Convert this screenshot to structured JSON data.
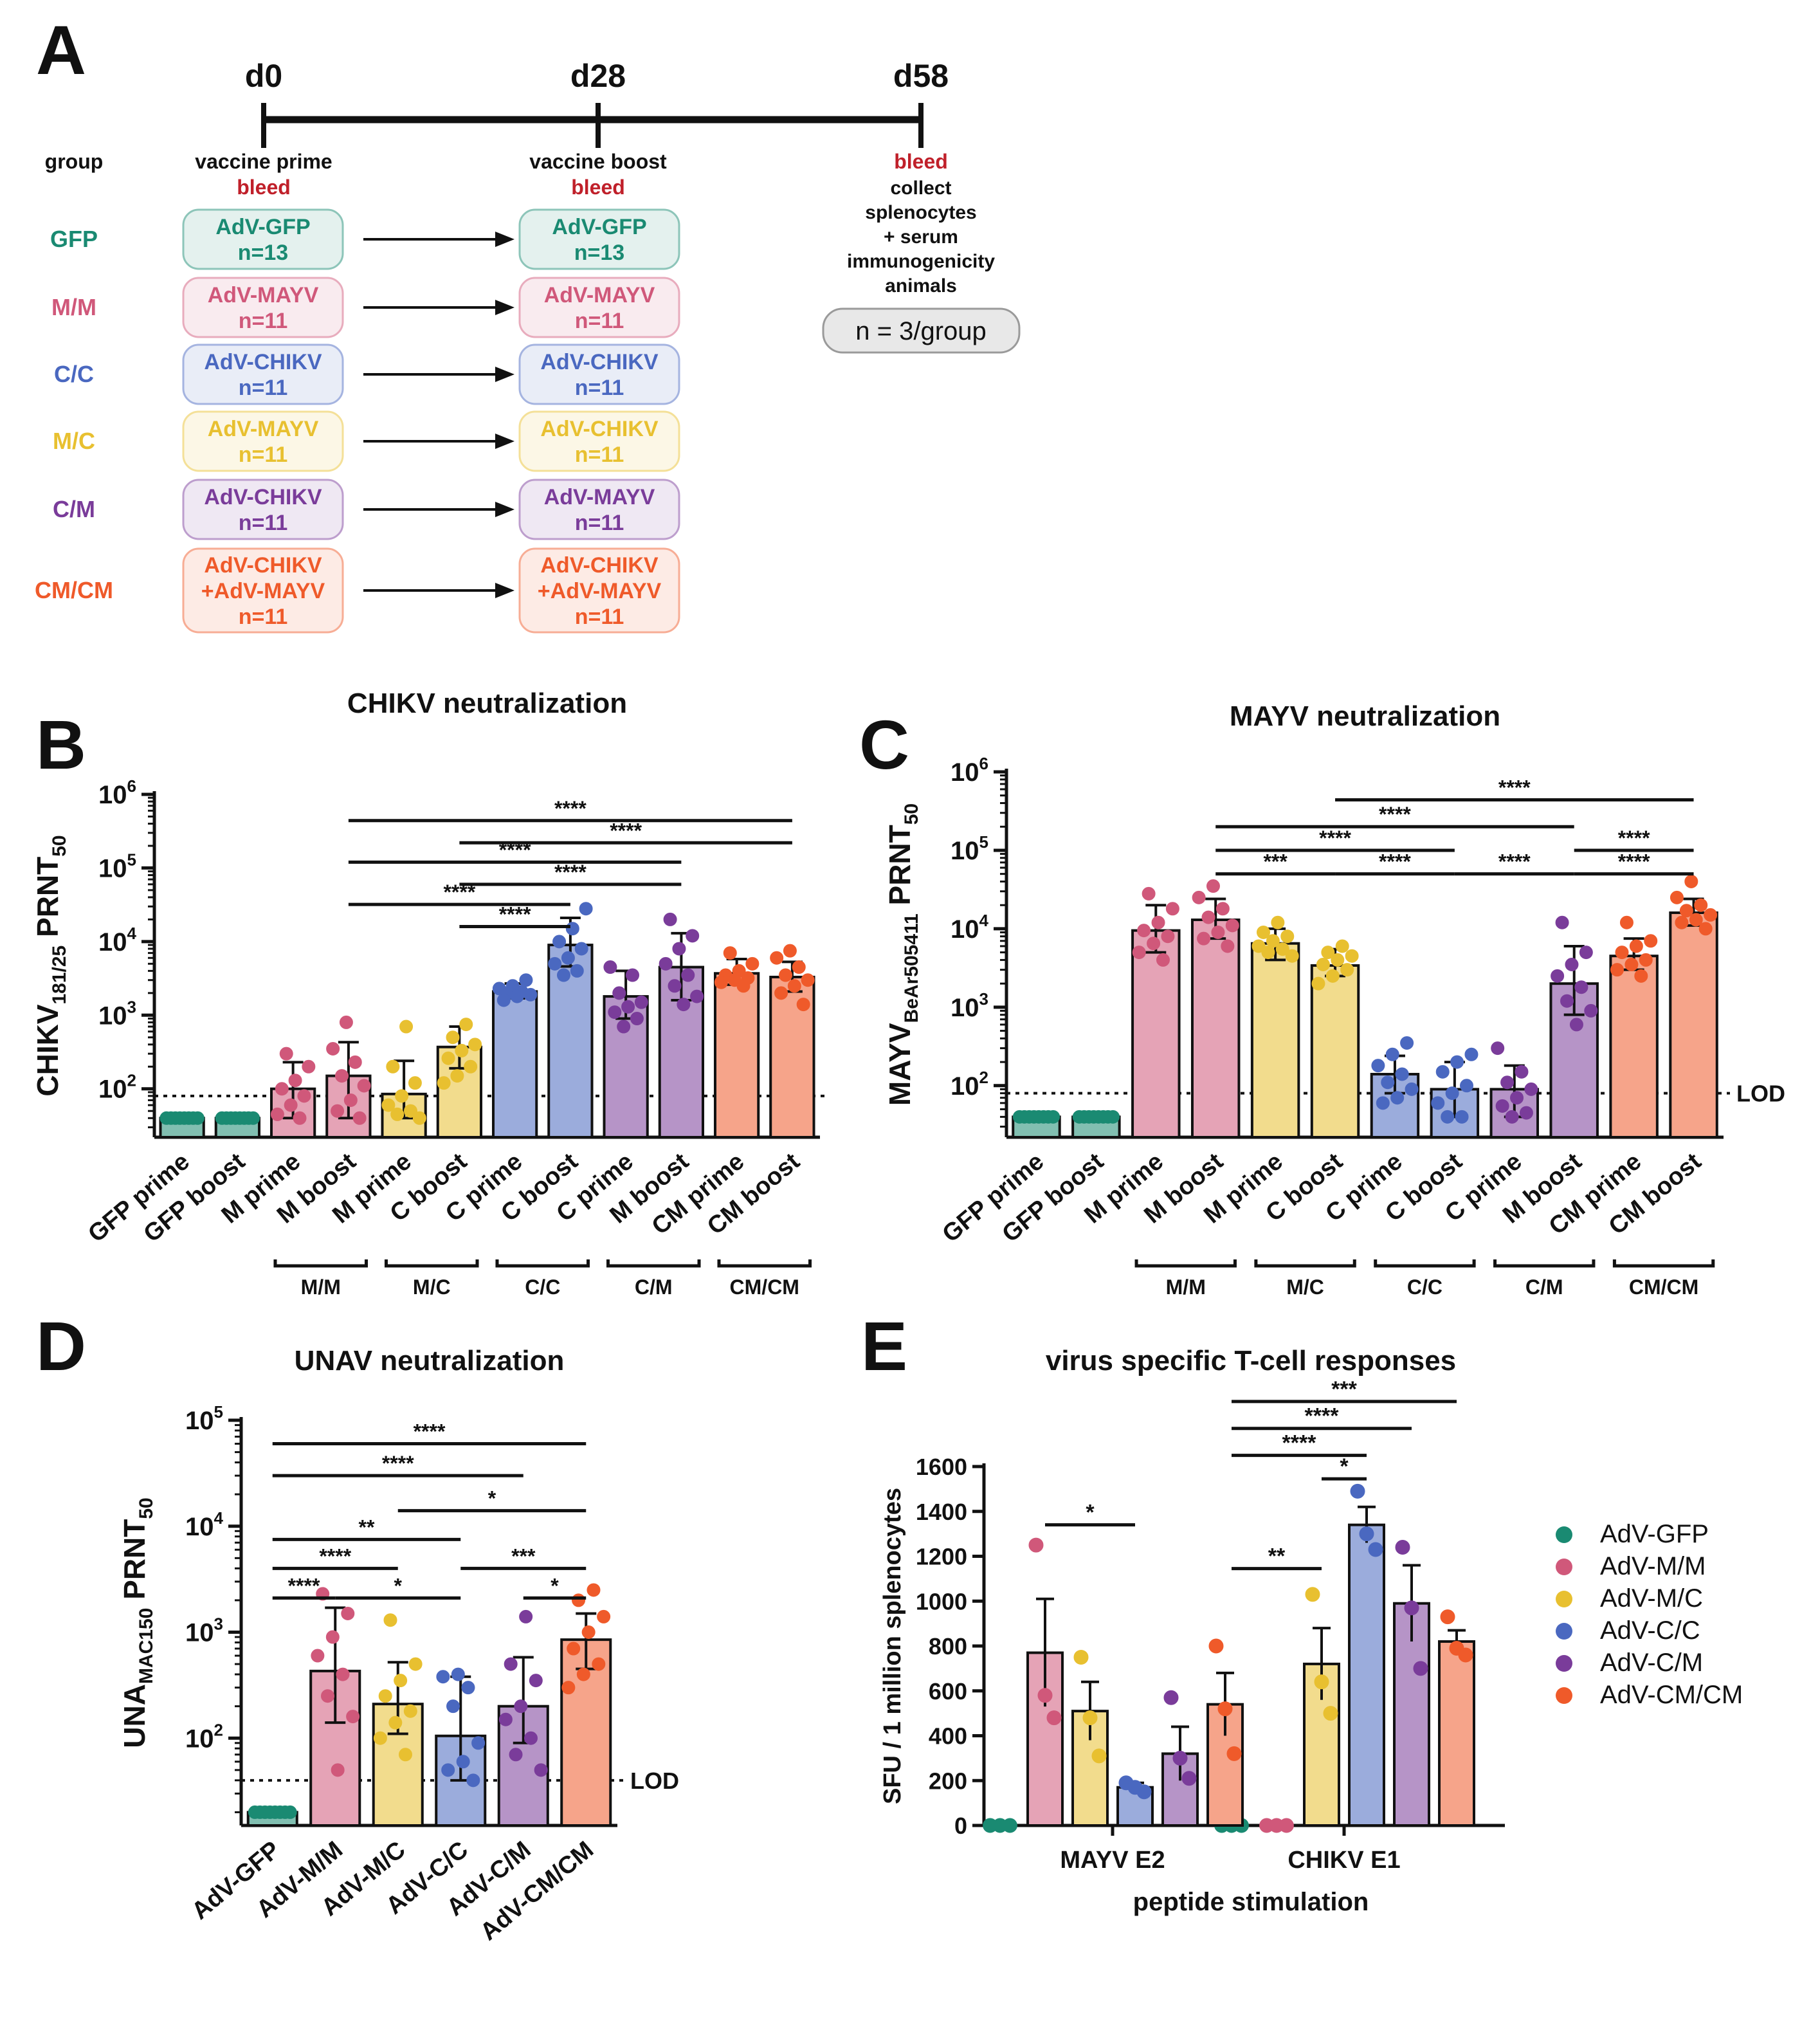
{
  "panel_letters": [
    "A",
    "B",
    "C",
    "D",
    "E"
  ],
  "colors": {
    "GFP": "#1a8a72",
    "MM": "#d0587a",
    "MC": "#e8c030",
    "CC": "#4a68c0",
    "CM": "#7a3c9a",
    "CMCM": "#ef5a2a",
    "bleed": "#c0202a"
  },
  "schema": {
    "timepoints": [
      "d0",
      "d28",
      "d58"
    ],
    "group_header": "group",
    "prime_label": "vaccine prime",
    "boost_label": "vaccine boost",
    "bleed_label": "bleed",
    "final_lines": [
      "collect",
      "splenocytes",
      "+ serum",
      "immunogenicity",
      "animals"
    ],
    "n_per_group": "n = 3/group",
    "groups": [
      {
        "name": "GFP",
        "key": "GFP",
        "prime": [
          "AdV-GFP",
          "n=13"
        ],
        "boost": [
          "AdV-GFP",
          "n=13"
        ]
      },
      {
        "name": "M/M",
        "key": "MM",
        "prime": [
          "AdV-MAYV",
          "n=11"
        ],
        "boost": [
          "AdV-MAYV",
          "n=11"
        ]
      },
      {
        "name": "C/C",
        "key": "CC",
        "prime": [
          "AdV-CHIKV",
          "n=11"
        ],
        "boost": [
          "AdV-CHIKV",
          "n=11"
        ]
      },
      {
        "name": "M/C",
        "key": "MC",
        "prime": [
          "AdV-MAYV",
          "n=11"
        ],
        "boost": [
          "AdV-CHIKV",
          "n=11"
        ]
      },
      {
        "name": "C/M",
        "key": "CM",
        "prime": [
          "AdV-CHIKV",
          "n=11"
        ],
        "boost": [
          "AdV-MAYV",
          "n=11"
        ]
      },
      {
        "name": "CM/CM",
        "key": "CMCM",
        "prime": [
          "AdV-CHIKV",
          "+AdV-MAYV",
          "n=11"
        ],
        "boost": [
          "AdV-CHIKV",
          "+AdV-MAYV",
          "n=11"
        ]
      }
    ]
  },
  "chart_data": [
    {
      "panel": "B",
      "type": "bar",
      "scale": "log",
      "title": "CHIKV neutralization",
      "ylabel_main": "CHIKV",
      "ylabel_sub": "181/25",
      "ylabel_tail": " PRNT",
      "ylabel_tail_sub": "50",
      "ylim": [
        22,
        1000000
      ],
      "ymax_exp": 6,
      "yticks": [
        {
          "base": "10",
          "exp": "2",
          "value": 100
        },
        {
          "base": "10",
          "exp": "3",
          "value": 1000
        },
        {
          "base": "10",
          "exp": "4",
          "value": 10000
        },
        {
          "base": "10",
          "exp": "5",
          "value": 100000
        },
        {
          "base": "10",
          "exp": "6",
          "value": 1000000
        }
      ],
      "lod": 80,
      "lod_label": "",
      "categories": [
        "GFP prime",
        "GFP boost",
        "M prime",
        "M boost",
        "M prime",
        "C boost",
        "C prime",
        "C boost",
        "C prime",
        "M boost",
        "CM prime",
        "CM boost"
      ],
      "color_keys": [
        "GFP",
        "GFP",
        "MM",
        "MM",
        "MC",
        "MC",
        "CC",
        "CC",
        "CM",
        "CM",
        "CMCM",
        "CMCM"
      ],
      "values": [
        40,
        40,
        100,
        150,
        85,
        370,
        2100,
        9000,
        1800,
        4500,
        3700,
        3300
      ],
      "err_hi": [
        40,
        40,
        230,
        430,
        240,
        700,
        2700,
        21000,
        4000,
        13000,
        5800,
        5300
      ],
      "err_lo": [
        40,
        40,
        40,
        40,
        40,
        190,
        1700,
        4600,
        900,
        1600,
        2600,
        2100
      ],
      "points": [
        [
          40,
          40,
          40,
          40,
          40,
          40,
          40,
          40
        ],
        [
          40,
          40,
          40,
          40,
          40,
          40,
          40,
          40
        ],
        [
          300,
          200,
          130,
          100,
          80,
          60,
          45,
          40
        ],
        [
          800,
          350,
          230,
          150,
          110,
          70,
          50,
          40
        ],
        [
          700,
          200,
          120,
          80,
          60,
          50,
          45,
          40
        ],
        [
          750,
          500,
          400,
          330,
          260,
          200,
          150,
          120
        ],
        [
          3000,
          2500,
          2300,
          2100,
          2000,
          1900,
          1800,
          1600
        ],
        [
          28000,
          15000,
          10000,
          8000,
          6000,
          5000,
          4000,
          3500
        ],
        [
          4500,
          3500,
          2000,
          1500,
          1300,
          1100,
          900,
          700
        ],
        [
          20000,
          12000,
          8000,
          5000,
          3500,
          2500,
          1800,
          1400
        ],
        [
          7000,
          5000,
          4000,
          3500,
          3200,
          3000,
          2800,
          2500
        ],
        [
          7500,
          6000,
          4500,
          3500,
          3000,
          2500,
          2000,
          1400
        ]
      ],
      "group_brackets": [
        {
          "label": "M/M",
          "from": 2,
          "to": 3
        },
        {
          "label": "M/C",
          "from": 4,
          "to": 5
        },
        {
          "label": "C/C",
          "from": 6,
          "to": 7
        },
        {
          "label": "C/M",
          "from": 8,
          "to": 9
        },
        {
          "label": "CM/CM",
          "from": 10,
          "to": 11
        }
      ],
      "significance": [
        {
          "from": 3,
          "to": 11,
          "label": "****",
          "y": 440000
        },
        {
          "from": 5,
          "to": 11,
          "label": "****",
          "y": 220000
        },
        {
          "from": 3,
          "to": 9,
          "label": "****",
          "y": 120000
        },
        {
          "from": 5,
          "to": 9,
          "label": "****",
          "y": 60000
        },
        {
          "from": 3,
          "to": 7,
          "label": "****",
          "y": 32000
        },
        {
          "from": 5,
          "to": 7,
          "label": "****",
          "y": 16000
        }
      ]
    },
    {
      "panel": "C",
      "type": "bar",
      "scale": "log",
      "title": "MAYV neutralization",
      "ylabel_main": "MAYV",
      "ylabel_sub": "BeAr505411",
      "ylabel_tail": " PRNT",
      "ylabel_tail_sub": "50",
      "ylim": [
        22,
        1000000
      ],
      "ymax_exp": 6,
      "yticks": [
        {
          "base": "10",
          "exp": "2",
          "value": 100
        },
        {
          "base": "10",
          "exp": "3",
          "value": 1000
        },
        {
          "base": "10",
          "exp": "4",
          "value": 10000
        },
        {
          "base": "10",
          "exp": "5",
          "value": 100000
        },
        {
          "base": "10",
          "exp": "6",
          "value": 1000000
        }
      ],
      "lod": 80,
      "lod_label": "LOD",
      "categories": [
        "GFP prime",
        "GFP boost",
        "M prime",
        "M boost",
        "M prime",
        "C boost",
        "C prime",
        "C boost",
        "C prime",
        "M boost",
        "CM prime",
        "CM boost"
      ],
      "color_keys": [
        "GFP",
        "GFP",
        "MM",
        "MM",
        "MC",
        "MC",
        "CC",
        "CC",
        "CM",
        "CM",
        "CMCM",
        "CMCM"
      ],
      "values": [
        40,
        40,
        9500,
        13000,
        6500,
        3400,
        140,
        90,
        90,
        2000,
        4500,
        16000
      ],
      "err_hi": [
        40,
        40,
        20000,
        24000,
        10000,
        5500,
        240,
        200,
        180,
        6000,
        7500,
        24000
      ],
      "err_lo": [
        40,
        40,
        5000,
        7500,
        4000,
        2500,
        80,
        40,
        40,
        800,
        3000,
        11000
      ],
      "points": [
        [
          40,
          40,
          40,
          40,
          40,
          40,
          40,
          40
        ],
        [
          40,
          40,
          40,
          40,
          40,
          40,
          40,
          40
        ],
        [
          28000,
          18000,
          12000,
          9500,
          8000,
          6500,
          5000,
          4000
        ],
        [
          35000,
          25000,
          18000,
          14000,
          11000,
          9000,
          7500,
          6000
        ],
        [
          12000,
          9000,
          8000,
          7000,
          6000,
          5500,
          5000,
          4500
        ],
        [
          6000,
          5000,
          4500,
          4000,
          3500,
          3000,
          2500,
          2000
        ],
        [
          350,
          250,
          180,
          140,
          110,
          90,
          70,
          60
        ],
        [
          250,
          200,
          150,
          100,
          80,
          60,
          40,
          40
        ],
        [
          300,
          150,
          110,
          90,
          70,
          55,
          45,
          40
        ],
        [
          12000,
          5000,
          3500,
          2500,
          1800,
          1200,
          900,
          600
        ],
        [
          12000,
          7000,
          6000,
          5000,
          4000,
          3500,
          3000,
          2500
        ],
        [
          40000,
          25000,
          20000,
          17000,
          15000,
          13000,
          12000,
          10000
        ]
      ],
      "group_brackets": [
        {
          "label": "M/M",
          "from": 2,
          "to": 3
        },
        {
          "label": "M/C",
          "from": 4,
          "to": 5
        },
        {
          "label": "C/C",
          "from": 6,
          "to": 7
        },
        {
          "label": "C/M",
          "from": 8,
          "to": 9
        },
        {
          "label": "CM/CM",
          "from": 10,
          "to": 11
        }
      ],
      "significance": [
        {
          "from": 5,
          "to": 11,
          "label": "****",
          "y": 440000
        },
        {
          "from": 3,
          "to": 9,
          "label": "****",
          "y": 200000
        },
        {
          "from": 3,
          "to": 7,
          "label": "****",
          "y": 100000
        },
        {
          "from": 9,
          "to": 11,
          "label": "****",
          "y": 100000
        },
        {
          "from": 3,
          "to": 5,
          "label": "***",
          "y": 50000
        },
        {
          "from": 5,
          "to": 7,
          "label": "****",
          "y": 50000
        },
        {
          "from": 7,
          "to": 9,
          "label": "****",
          "y": 50000
        },
        {
          "from": 9,
          "to": 11,
          "label": "****",
          "y": 50000
        }
      ]
    },
    {
      "panel": "D",
      "type": "bar",
      "scale": "log",
      "title": "UNAV neutralization",
      "ylabel_main": "UNA",
      "ylabel_sub": "MAC150",
      "ylabel_tail": " PRNT",
      "ylabel_tail_sub": "50",
      "ylim": [
        15,
        100000
      ],
      "ymax_exp": 5,
      "yticks": [
        {
          "base": "10",
          "exp": "2",
          "value": 100
        },
        {
          "base": "10",
          "exp": "3",
          "value": 1000
        },
        {
          "base": "10",
          "exp": "4",
          "value": 10000
        },
        {
          "base": "10",
          "exp": "5",
          "value": 100000
        }
      ],
      "lod": 40,
      "lod_label": "LOD",
      "categories": [
        "AdV-GFP",
        "AdV-M/M",
        "AdV-M/C",
        "AdV-C/C",
        "AdV-C/M",
        "AdV-CM/CM"
      ],
      "color_keys": [
        "GFP",
        "MM",
        "MC",
        "CC",
        "CM",
        "CMCM"
      ],
      "values": [
        20,
        430,
        210,
        105,
        200,
        850
      ],
      "err_hi": [
        20,
        1700,
        520,
        380,
        580,
        1500
      ],
      "err_lo": [
        20,
        140,
        110,
        40,
        90,
        450
      ],
      "points": [
        [
          20,
          20,
          20,
          20,
          20,
          20,
          20,
          20
        ],
        [
          2300,
          1500,
          900,
          600,
          400,
          250,
          160,
          50
        ],
        [
          1300,
          500,
          350,
          250,
          180,
          140,
          100,
          70
        ],
        [
          400,
          380,
          300,
          200,
          90,
          60,
          50,
          40
        ],
        [
          1400,
          500,
          350,
          200,
          150,
          100,
          70,
          50
        ],
        [
          2500,
          2000,
          1400,
          1000,
          700,
          500,
          400,
          300
        ]
      ],
      "group_brackets": [],
      "significance": [
        {
          "from": 0,
          "to": 5,
          "label": "****",
          "y": 60000
        },
        {
          "from": 0,
          "to": 4,
          "label": "****",
          "y": 30000
        },
        {
          "from": 2,
          "to": 5,
          "label": "*",
          "y": 14000
        },
        {
          "from": 0,
          "to": 3,
          "label": "**",
          "y": 7500
        },
        {
          "from": 0,
          "to": 2,
          "label": "****",
          "y": 4000
        },
        {
          "from": 3,
          "to": 5,
          "label": "***",
          "y": 4000
        },
        {
          "from": 0,
          "to": 1,
          "label": "****",
          "y": 2100
        },
        {
          "from": 1,
          "to": 3,
          "label": "*",
          "y": 2100
        },
        {
          "from": 4,
          "to": 5,
          "label": "*",
          "y": 2100
        }
      ]
    },
    {
      "panel": "E",
      "type": "bar",
      "scale": "linear",
      "title": "virus specific T-cell responses",
      "ylabel": "SFU / 1 million splenocytes",
      "xlabel": "peptide stimulation",
      "ylim": [
        0,
        1600
      ],
      "yticks": [
        0,
        200,
        400,
        600,
        800,
        1000,
        1200,
        1400,
        1600
      ],
      "categories": [
        "MAYV E2",
        "CHIKV E1"
      ],
      "series": [
        {
          "name": "AdV-GFP",
          "color_key": "GFP",
          "values": [
            0,
            0
          ],
          "sem": [
            0,
            0
          ],
          "points": [
            [
              0,
              0,
              0
            ],
            [
              0,
              0,
              0
            ]
          ]
        },
        {
          "name": "AdV-M/M",
          "color_key": "MM",
          "values": [
            770,
            0
          ],
          "sem": [
            240,
            0
          ],
          "points": [
            [
              1250,
              580,
              480
            ],
            [
              0,
              0,
              0
            ]
          ]
        },
        {
          "name": "AdV-M/C",
          "color_key": "MC",
          "values": [
            510,
            720
          ],
          "sem": [
            130,
            160
          ],
          "points": [
            [
              750,
              480,
              310
            ],
            [
              1030,
              640,
              500
            ]
          ]
        },
        {
          "name": "AdV-C/C",
          "color_key": "CC",
          "values": [
            170,
            1340
          ],
          "sem": [
            20,
            80
          ],
          "points": [
            [
              190,
              170,
              150
            ],
            [
              1490,
              1300,
              1230
            ]
          ]
        },
        {
          "name": "AdV-C/M",
          "color_key": "CM",
          "values": [
            320,
            990
          ],
          "sem": [
            120,
            170
          ],
          "points": [
            [
              570,
              300,
              210
            ],
            [
              1240,
              970,
              700
            ]
          ]
        },
        {
          "name": "AdV-CM/CM",
          "color_key": "CMCM",
          "values": [
            540,
            820
          ],
          "sem": [
            140,
            50
          ],
          "points": [
            [
              800,
              520,
              320
            ],
            [
              930,
              790,
              760
            ]
          ]
        }
      ],
      "significance": [
        {
          "cat": 0,
          "from": 1,
          "to": 3,
          "label": "*",
          "y": 1340
        },
        {
          "cat": 1,
          "from": 0,
          "to": 5,
          "label": "***",
          "y": 1890
        },
        {
          "cat": 1,
          "from": 0,
          "to": 4,
          "label": "****",
          "y": 1770
        },
        {
          "cat": 1,
          "from": 0,
          "to": 3,
          "label": "****",
          "y": 1650
        },
        {
          "cat": 1,
          "from": 2,
          "to": 3,
          "label": "*",
          "y": 1545
        },
        {
          "cat": 1,
          "from": 0,
          "to": 2,
          "label": "**",
          "y": 1145
        }
      ]
    }
  ]
}
